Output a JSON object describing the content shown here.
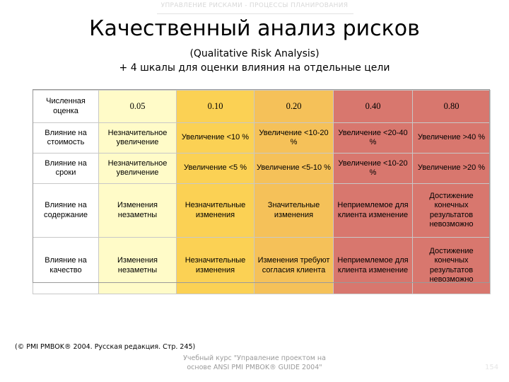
{
  "header": {
    "caption": "УПРАВЛЕНИЕ РИСКАМИ - ПРОЦЕССЫ ПЛАНИРОВАНИЯ",
    "title": "Качественный анализ рисков",
    "subtitle_en": "(Qualitative Risk Analysis)",
    "subtitle_ru": "+ 4 шкалы для оценки влияния на отдельные цели"
  },
  "table": {
    "header": [
      "Численная оценка",
      "0.05",
      "0.10",
      "0.20",
      "0.40",
      "0.80"
    ],
    "rows": [
      {
        "label": "Влияние на стоимость",
        "cells": [
          "Незначительное увеличение",
          "Увеличение <10 %",
          "Увеличение <10-20 %",
          "Увеличение <20-40 %",
          "Увеличение >40 %"
        ]
      },
      {
        "label": "Влияние на сроки",
        "cells": [
          "Незначительное увеличение",
          "Увеличение <5 %",
          "Увеличение <5-10 %",
          "Увеличение <10-20 %",
          "Увеличение >20 %"
        ]
      },
      {
        "label": "Влияние на содержание",
        "cells": [
          "Изменения незаметны",
          "Незначительные изменения",
          "Значительные изменения",
          "Неприемлемое для клиента изменение",
          "Достижение конечных результатов невозможно"
        ]
      },
      {
        "label": "Влияние на качество",
        "cells": [
          "Изменения незаметны",
          "Незначительные изменения",
          "Изменения требуют согласия клиента",
          "Неприемлемое для клиента изменение",
          "Достижение конечных результатов невозможно"
        ]
      }
    ],
    "colors": [
      "#ffffff",
      "#fffbc8",
      "#fbd154",
      "#f5c159",
      "#d8776e",
      "#d8776e"
    ]
  },
  "citation": "(© PMI PMBOK® 2004. Русская редакция. Стр. 245)",
  "footer": {
    "line1": "Учебный курс \"Управление проектом на",
    "line2": "основе ANSI PMI PMBOK® GUIDE 2004\"",
    "page": "154"
  }
}
